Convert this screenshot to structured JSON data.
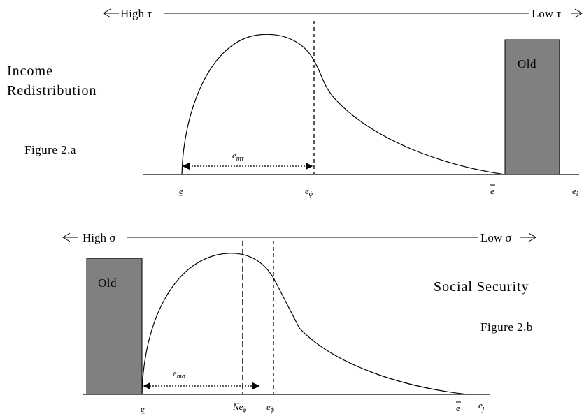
{
  "figure_a": {
    "arrow_left": "High τ",
    "arrow_right": "Low τ",
    "title_line1": "Income",
    "title_line2": "Redistribution",
    "caption": "Figure 2.a",
    "old_label": "Old",
    "span_label_main": "e",
    "span_label_sub": "mτ",
    "ticks": {
      "e_lower": "e",
      "e_phi_main": "e",
      "e_phi_sub": "ϕ",
      "e_upper": "e",
      "e_axis_main": "e",
      "e_axis_sub": "i"
    }
  },
  "figure_b": {
    "arrow_left": "High σ",
    "arrow_right": "Low σ",
    "title": "Social Security",
    "caption": "Figure 2.b",
    "old_label": "Old",
    "span_label_main": "e",
    "span_label_sub": "mσ",
    "ticks": {
      "e_lower": "e",
      "ne_phi_main": "Ne",
      "ne_phi_sub": "ϕ",
      "e_phi_main": "e",
      "e_phi_sub": "ϕ",
      "e_upper": "e",
      "e_axis_main": "e",
      "e_axis_sub": "j"
    }
  },
  "colors": {
    "bar_fill": "#808080",
    "line": "#000000"
  }
}
